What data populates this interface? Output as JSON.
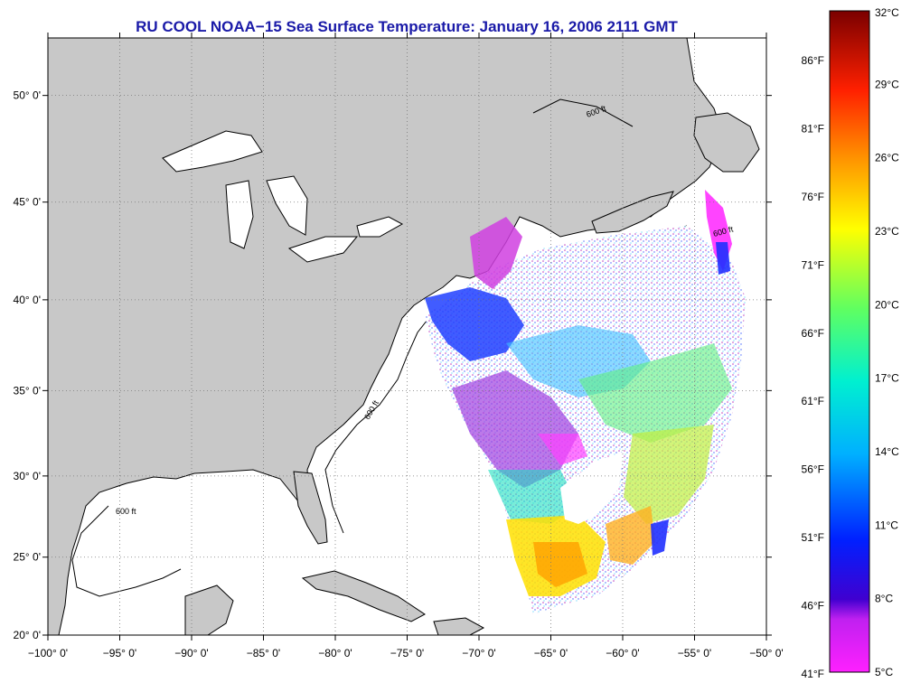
{
  "title": "RU COOL  NOAA−15  Sea Surface Temperature:  January 16, 2006 2111 GMT",
  "map": {
    "lon_range": [
      -100,
      -50
    ],
    "lat_range": [
      20,
      52.5
    ],
    "lon_ticks": [
      "−100° 0'",
      "−95° 0'",
      "−90° 0'",
      "−85° 0'",
      "−80° 0'",
      "−75° 0'",
      "−70° 0'",
      "−65° 0'",
      "−60° 0'",
      "−55° 0'",
      "−50° 0'"
    ],
    "lat_ticks": [
      "20° 0'",
      "25° 0'",
      "30° 0'",
      "35° 0'",
      "40° 0'",
      "45° 0'",
      "50° 0'"
    ],
    "isobath_label": "600 ft",
    "land_color": "#c8c8c8",
    "ocean_color": "#ffffff",
    "grid": "dotted"
  },
  "colorbar": {
    "celsius_labels": [
      "32°C",
      "29°C",
      "26°C",
      "23°C",
      "20°C",
      "17°C",
      "14°C",
      "11°C",
      "8°C",
      "5°C"
    ],
    "fahrenheit_labels": [
      "86°F",
      "81°F",
      "76°F",
      "71°F",
      "66°F",
      "61°F",
      "56°F",
      "51°F",
      "46°F",
      "41°F"
    ],
    "colors": [
      "#7a0000",
      "#ff0000",
      "#ff8000",
      "#ffff00",
      "#a0ff40",
      "#00ffff",
      "#0090ff",
      "#0000ff",
      "#8000ff",
      "#ff00ff"
    ]
  }
}
